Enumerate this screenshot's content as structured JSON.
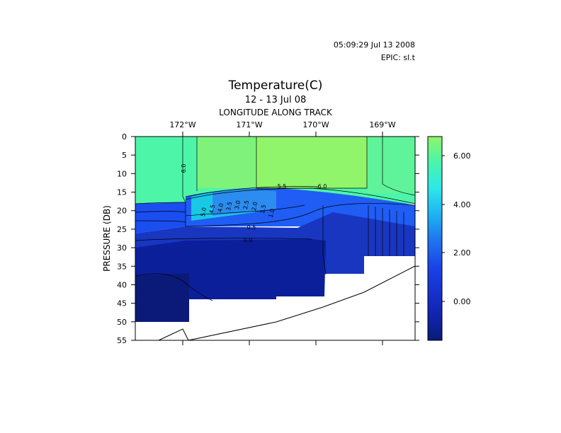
{
  "header": {
    "timestamp": "05:09:29 Jul 13 2008",
    "epic": "EPIC:  sl.t"
  },
  "chart_data": {
    "type": "heatmap",
    "title": "Temperature(C)",
    "subtitle": "12 - 13 Jul 08",
    "xlabel": "LONGITUDE ALONG TRACK",
    "ylabel": "PRESSURE (DB)",
    "x_ticks": [
      "172°W",
      "171°W",
      "170°W",
      "169°W"
    ],
    "y_ticks": [
      0,
      5,
      10,
      15,
      20,
      25,
      30,
      35,
      40,
      45,
      50,
      55
    ],
    "ylim": [
      0,
      55
    ],
    "y_inverted": true,
    "colorbar": {
      "ticks": [
        "6.00",
        "4.00",
        "2.00",
        "0.00"
      ],
      "range": [
        -1.6,
        6.8
      ]
    },
    "contour_labels": [
      "6.0",
      "5.0",
      "4.5",
      "4.0",
      "3.5",
      "3.0",
      "2.5",
      "2.0",
      "1.5",
      "1.0",
      "0.5",
      "0.0",
      "5.5",
      "6.0"
    ],
    "colors": {
      "cold": "#0a1a7a",
      "mid": "#1a3ae0",
      "warm": "#4cf5a8",
      "hot": "#90f56a"
    }
  }
}
